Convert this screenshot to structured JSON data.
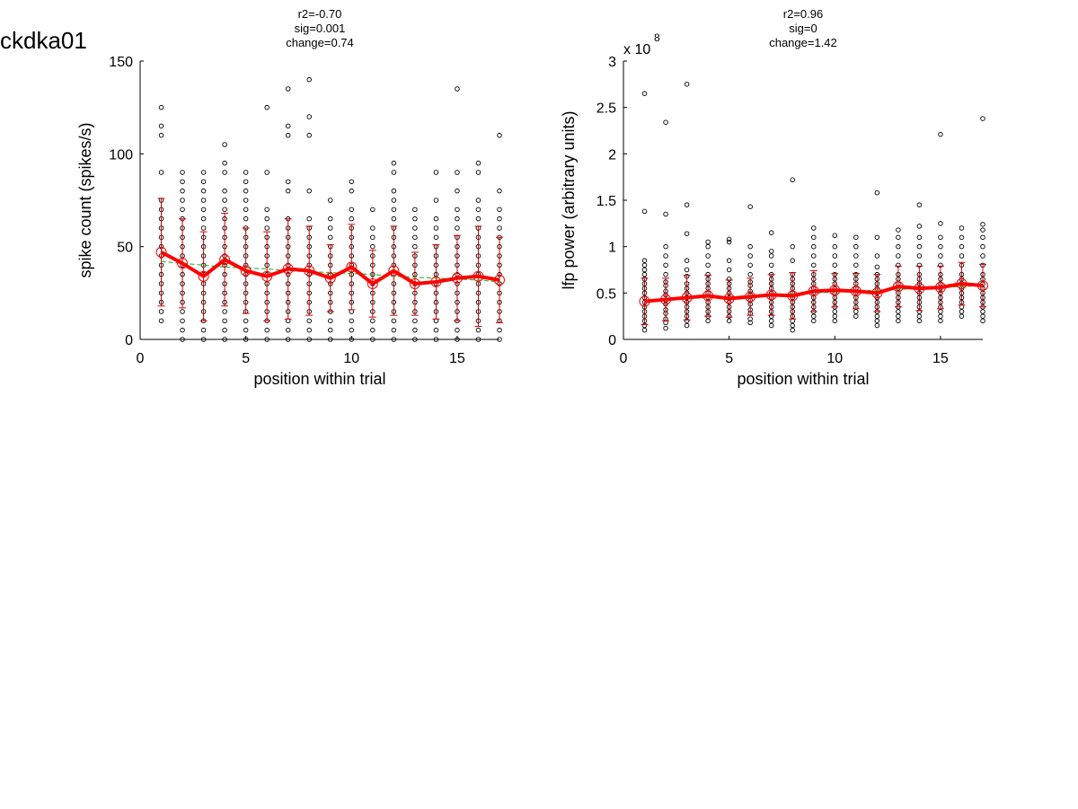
{
  "figure_label": "ckdka01",
  "colors": {
    "points": "#000000",
    "mean_line": "#ff0000",
    "error_bars": "#cc0000",
    "fit_line": "#33bb33"
  },
  "chart_data": [
    {
      "type": "scatter",
      "title_lines": [
        "r2=-0.70",
        "sig=0.001",
        "change=0.74"
      ],
      "xlabel": "position within trial",
      "ylabel": "spike count (spikes/s)",
      "xlim": [
        0,
        17
      ],
      "ylim": [
        0,
        150
      ],
      "xticks": [
        0,
        5,
        10,
        15
      ],
      "yticks": [
        0,
        50,
        100,
        150
      ],
      "ytick_labels": [
        "0",
        "50",
        "100",
        "150"
      ],
      "exponent_label": "",
      "grid": false,
      "x": [
        1,
        2,
        3,
        4,
        5,
        6,
        7,
        8,
        9,
        10,
        11,
        12,
        13,
        14,
        15,
        16,
        17
      ],
      "mean": [
        47,
        41,
        34,
        43,
        37,
        34,
        38,
        37,
        33,
        39,
        30,
        37,
        30,
        31,
        33,
        34,
        32
      ],
      "sd": [
        29,
        24,
        24,
        25,
        23,
        24,
        27,
        24,
        18,
        23,
        18,
        24,
        17,
        20,
        23,
        27,
        23
      ],
      "fit": [
        42,
        41,
        40,
        39,
        38.5,
        38,
        37,
        36.5,
        36,
        35.5,
        35,
        34,
        33.5,
        33,
        32.5,
        32,
        31
      ],
      "points": [
        [
          10,
          15,
          20,
          25,
          30,
          35,
          40,
          45,
          50,
          55,
          60,
          65,
          70,
          75,
          90,
          110,
          115,
          125
        ],
        [
          0,
          5,
          10,
          15,
          20,
          25,
          30,
          35,
          40,
          45,
          50,
          55,
          60,
          65,
          70,
          75,
          80,
          85,
          90
        ],
        [
          0,
          5,
          10,
          15,
          20,
          25,
          30,
          35,
          40,
          45,
          50,
          55,
          60,
          65,
          70,
          75,
          80,
          85,
          90
        ],
        [
          0,
          5,
          10,
          15,
          20,
          25,
          30,
          35,
          40,
          45,
          50,
          55,
          60,
          65,
          70,
          75,
          80,
          90,
          95,
          105
        ],
        [
          0,
          5,
          10,
          15,
          20,
          25,
          30,
          35,
          40,
          45,
          50,
          55,
          60,
          65,
          70,
          75,
          80,
          85,
          90
        ],
        [
          0,
          5,
          10,
          15,
          20,
          25,
          30,
          35,
          40,
          45,
          50,
          55,
          60,
          65,
          70,
          90,
          125
        ],
        [
          0,
          5,
          10,
          15,
          20,
          25,
          30,
          35,
          40,
          45,
          50,
          55,
          60,
          65,
          80,
          85,
          110,
          115,
          135
        ],
        [
          0,
          5,
          10,
          15,
          20,
          25,
          30,
          35,
          40,
          45,
          50,
          55,
          60,
          65,
          80,
          110,
          120,
          140
        ],
        [
          0,
          5,
          10,
          15,
          20,
          25,
          30,
          35,
          40,
          45,
          50,
          55,
          60,
          65,
          75
        ],
        [
          0,
          5,
          10,
          15,
          20,
          25,
          30,
          35,
          40,
          45,
          50,
          55,
          60,
          65,
          70,
          80,
          85
        ],
        [
          0,
          5,
          10,
          15,
          20,
          25,
          30,
          35,
          40,
          45,
          50,
          55,
          60,
          70
        ],
        [
          0,
          5,
          10,
          15,
          20,
          25,
          30,
          35,
          40,
          45,
          50,
          55,
          60,
          65,
          70,
          75,
          80,
          90,
          95
        ],
        [
          0,
          5,
          10,
          15,
          20,
          25,
          30,
          35,
          40,
          45,
          50,
          55,
          60,
          65,
          70
        ],
        [
          0,
          5,
          10,
          15,
          20,
          25,
          30,
          35,
          40,
          45,
          50,
          55,
          60,
          65,
          75,
          90
        ],
        [
          0,
          5,
          10,
          15,
          20,
          25,
          30,
          35,
          40,
          45,
          50,
          55,
          60,
          65,
          70,
          80,
          90,
          135
        ],
        [
          0,
          5,
          10,
          15,
          20,
          25,
          30,
          35,
          40,
          45,
          50,
          55,
          60,
          65,
          70,
          75,
          90,
          95
        ],
        [
          0,
          5,
          10,
          15,
          20,
          25,
          30,
          35,
          40,
          45,
          50,
          55,
          60,
          65,
          70,
          80,
          110
        ]
      ]
    },
    {
      "type": "scatter",
      "title_lines": [
        "r2=0.96",
        "sig=0",
        "change=1.42"
      ],
      "xlabel": "position within trial",
      "ylabel": "lfp power (arbitrary units)",
      "xlim": [
        0,
        17
      ],
      "ylim": [
        0,
        3
      ],
      "xticks": [
        0,
        5,
        10,
        15
      ],
      "yticks": [
        0,
        0.5,
        1,
        1.5,
        2,
        2.5,
        3
      ],
      "ytick_labels": [
        "0",
        "0.5",
        "1",
        "1.5",
        "2",
        "2.5",
        "3"
      ],
      "exponent_label": "x 10",
      "exponent_power": "8",
      "grid": false,
      "x": [
        1,
        2,
        3,
        4,
        5,
        6,
        7,
        8,
        9,
        10,
        11,
        12,
        13,
        14,
        15,
        16,
        17
      ],
      "mean": [
        0.41,
        0.43,
        0.45,
        0.47,
        0.44,
        0.46,
        0.48,
        0.47,
        0.52,
        0.53,
        0.52,
        0.5,
        0.57,
        0.55,
        0.56,
        0.6,
        0.58
      ],
      "sd": [
        0.25,
        0.23,
        0.24,
        0.22,
        0.2,
        0.2,
        0.22,
        0.25,
        0.22,
        0.18,
        0.19,
        0.2,
        0.22,
        0.24,
        0.23,
        0.23,
        0.23
      ],
      "fit": [
        0.42,
        0.43,
        0.44,
        0.45,
        0.46,
        0.47,
        0.48,
        0.49,
        0.5,
        0.51,
        0.52,
        0.53,
        0.54,
        0.55,
        0.56,
        0.57,
        0.58
      ],
      "points": [
        [
          0.1,
          0.15,
          0.2,
          0.25,
          0.3,
          0.35,
          0.4,
          0.45,
          0.5,
          0.55,
          0.6,
          0.65,
          0.7,
          0.75,
          0.8,
          0.85,
          1.38,
          2.65
        ],
        [
          0.12,
          0.18,
          0.22,
          0.28,
          0.32,
          0.38,
          0.42,
          0.48,
          0.52,
          0.58,
          0.62,
          0.7,
          0.8,
          0.9,
          1.0,
          1.35,
          2.34
        ],
        [
          0.15,
          0.2,
          0.25,
          0.3,
          0.35,
          0.4,
          0.45,
          0.5,
          0.55,
          0.6,
          0.68,
          0.75,
          0.85,
          1.14,
          1.45,
          2.75
        ],
        [
          0.2,
          0.25,
          0.3,
          0.35,
          0.4,
          0.45,
          0.5,
          0.55,
          0.6,
          0.65,
          0.7,
          0.8,
          0.9,
          1.0,
          1.05
        ],
        [
          0.2,
          0.25,
          0.3,
          0.35,
          0.4,
          0.45,
          0.5,
          0.55,
          0.6,
          0.65,
          0.75,
          0.85,
          1.05,
          1.08
        ],
        [
          0.18,
          0.22,
          0.28,
          0.32,
          0.38,
          0.42,
          0.48,
          0.52,
          0.58,
          0.62,
          0.7,
          0.8,
          0.9,
          1.0,
          1.43
        ],
        [
          0.15,
          0.2,
          0.25,
          0.3,
          0.35,
          0.4,
          0.45,
          0.5,
          0.55,
          0.6,
          0.65,
          0.7,
          0.8,
          0.9,
          0.95,
          1.15
        ],
        [
          0.1,
          0.15,
          0.2,
          0.25,
          0.3,
          0.35,
          0.4,
          0.45,
          0.5,
          0.55,
          0.6,
          0.65,
          0.7,
          0.85,
          1.0,
          1.72
        ],
        [
          0.2,
          0.25,
          0.3,
          0.35,
          0.4,
          0.45,
          0.5,
          0.55,
          0.6,
          0.65,
          0.7,
          0.8,
          0.9,
          1.0,
          1.1,
          1.2
        ],
        [
          0.2,
          0.25,
          0.3,
          0.35,
          0.4,
          0.45,
          0.5,
          0.55,
          0.6,
          0.65,
          0.7,
          0.8,
          0.9,
          1.0,
          1.12
        ],
        [
          0.25,
          0.3,
          0.35,
          0.4,
          0.45,
          0.5,
          0.55,
          0.6,
          0.65,
          0.7,
          0.8,
          0.9,
          1.0,
          1.1
        ],
        [
          0.15,
          0.2,
          0.25,
          0.3,
          0.35,
          0.4,
          0.45,
          0.5,
          0.55,
          0.6,
          0.65,
          0.7,
          0.78,
          0.9,
          1.1,
          1.58
        ],
        [
          0.2,
          0.25,
          0.3,
          0.35,
          0.4,
          0.45,
          0.5,
          0.55,
          0.6,
          0.65,
          0.7,
          0.8,
          0.9,
          1.0,
          1.1,
          1.18
        ],
        [
          0.2,
          0.25,
          0.3,
          0.35,
          0.4,
          0.45,
          0.5,
          0.55,
          0.6,
          0.65,
          0.7,
          0.8,
          0.9,
          1.0,
          1.1,
          1.22,
          1.45
        ],
        [
          0.2,
          0.25,
          0.3,
          0.35,
          0.4,
          0.45,
          0.5,
          0.55,
          0.6,
          0.65,
          0.7,
          0.8,
          0.9,
          1.0,
          1.1,
          1.25,
          2.21
        ],
        [
          0.25,
          0.3,
          0.35,
          0.4,
          0.45,
          0.5,
          0.55,
          0.6,
          0.65,
          0.7,
          0.8,
          0.9,
          1.0,
          1.1,
          1.2
        ],
        [
          0.2,
          0.25,
          0.3,
          0.35,
          0.4,
          0.45,
          0.5,
          0.55,
          0.6,
          0.65,
          0.7,
          0.8,
          0.9,
          1.0,
          1.1,
          1.18,
          1.24,
          2.38
        ]
      ]
    }
  ]
}
